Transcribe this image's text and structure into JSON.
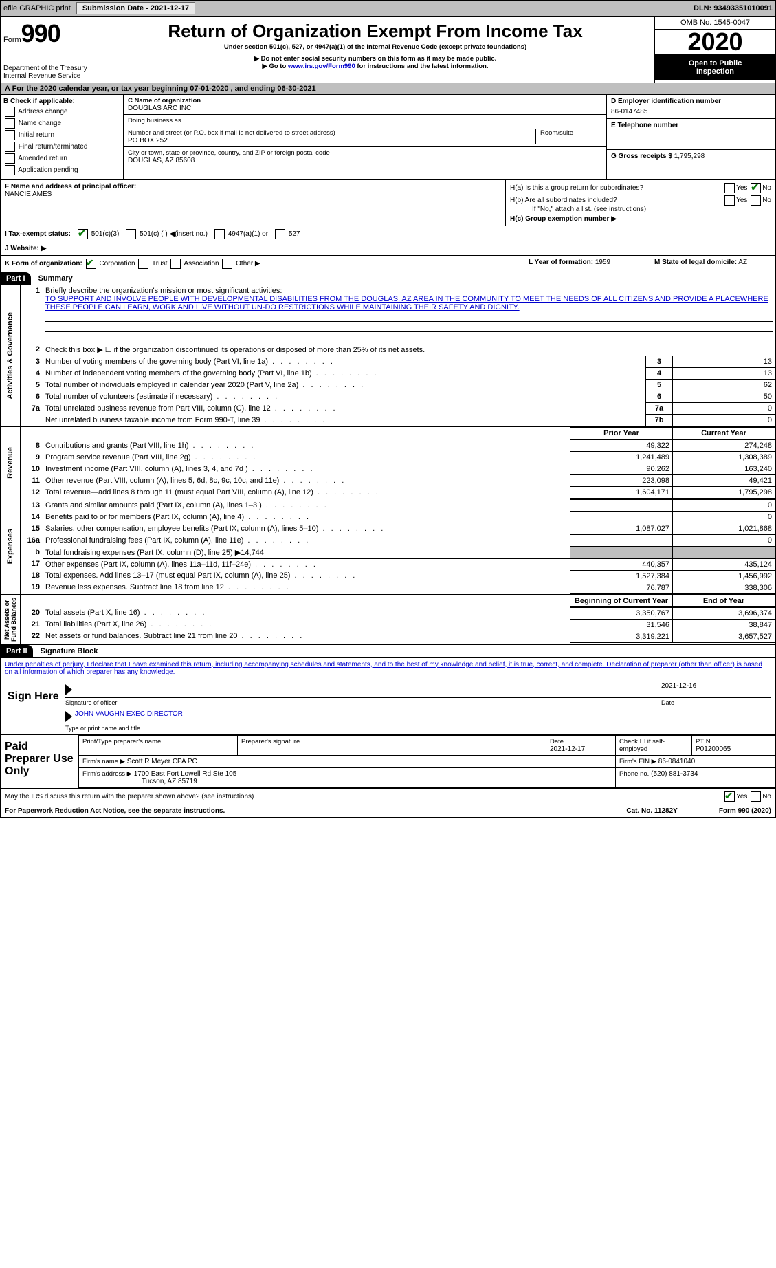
{
  "colors": {
    "header_bg": "#bfbfbf",
    "accent": "#0a7a0a",
    "link": "#0000cc"
  },
  "topbar": {
    "efile": "efile GRAPHIC print",
    "submission_label": "Submission Date - 2021-12-17",
    "dln_label": "DLN: 93493351010091"
  },
  "header": {
    "form_word": "Form",
    "form_no": "990",
    "dept": "Department of the Treasury\nInternal Revenue Service",
    "title": "Return of Organization Exempt From Income Tax",
    "subtitle": "Under section 501(c), 527, or 4947(a)(1) of the Internal Revenue Code (except private foundations)",
    "note1": "▶ Do not enter social security numbers on this form as it may be made public.",
    "note2_a": "▶ Go to ",
    "note2_link": "www.irs.gov/Form990",
    "note2_b": " for instructions and the latest information.",
    "omb": "OMB No. 1545-0047",
    "year": "2020",
    "open_public": "Open to Public\nInspection"
  },
  "period": {
    "prefix": "A For the 2020 calendar year, or tax year beginning ",
    "begin": "07-01-2020",
    "mid": " , and ending ",
    "end": "06-30-2021"
  },
  "B": {
    "label": "B Check if applicable:",
    "opts": [
      "Address change",
      "Name change",
      "Initial return",
      "Final return/terminated",
      "Amended return",
      "Application pending"
    ]
  },
  "C": {
    "name_label": "C Name of organization",
    "name": "DOUGLAS ARC INC",
    "dba_label": "Doing business as",
    "dba": "",
    "addr_label": "Number and street (or P.O. box if mail is not delivered to street address)",
    "addr": "PO BOX 252",
    "room_label": "Room/suite",
    "city_label": "City or town, state or province, country, and ZIP or foreign postal code",
    "city": "DOUGLAS, AZ  85608"
  },
  "D": {
    "label": "D Employer identification number",
    "value": "86-0147485"
  },
  "E": {
    "label": "E Telephone number",
    "value": ""
  },
  "G": {
    "label": "G Gross receipts $",
    "value": "1,795,298"
  },
  "F": {
    "label": "F  Name and address of principal officer:",
    "value": "NANCIE AMES"
  },
  "H": {
    "a": "H(a)  Is this a group return for subordinates?",
    "a_yes": "Yes",
    "a_no": "No",
    "b": "H(b)  Are all subordinates included?",
    "b_note": "If \"No,\" attach a list. (see instructions)",
    "c": "H(c)  Group exemption number ▶"
  },
  "I": {
    "label": "I  Tax-exempt status:",
    "opts": [
      "501(c)(3)",
      "501(c) (  )  ◀(insert no.)",
      "4947(a)(1) or",
      "527"
    ]
  },
  "J": {
    "label": "J  Website: ▶"
  },
  "K": {
    "label": "K Form of organization:",
    "opts": [
      "Corporation",
      "Trust",
      "Association",
      "Other ▶"
    ]
  },
  "L": {
    "label": "L Year of formation:",
    "value": "1959"
  },
  "M": {
    "label": "M State of legal domicile:",
    "value": "AZ"
  },
  "part1": {
    "hdr": "Part I",
    "title": "Summary",
    "q1_label": "1",
    "q1": "Briefly describe the organization's mission or most significant activities:",
    "mission": "TO SUPPORT AND INVOLVE PEOPLE WITH DEVELOPMENTAL DISABILITIES FROM THE DOUGLAS, AZ AREA IN THE COMMUNITY TO MEET THE NEEDS OF ALL CITIZENS AND PROVIDE A PLACEWHERE THESE PEOPLE CAN LEARN, WORK AND LIVE WITHOUT UN-DO RESTRICTIONS WHILE MAINTAINING THEIR SAFETY AND DIGNITY.",
    "q2": "Check this box ▶ ☐ if the organization discontinued its operations or disposed of more than 25% of its net assets.",
    "gov_label": "Activities & Governance",
    "rev_label": "Revenue",
    "exp_label": "Expenses",
    "na_label": "Net Assets or\nFund Balances",
    "lines_gov": [
      {
        "n": "3",
        "t": "Number of voting members of the governing body (Part VI, line 1a)",
        "box": "3",
        "v": "13"
      },
      {
        "n": "4",
        "t": "Number of independent voting members of the governing body (Part VI, line 1b)",
        "box": "4",
        "v": "13"
      },
      {
        "n": "5",
        "t": "Total number of individuals employed in calendar year 2020 (Part V, line 2a)",
        "box": "5",
        "v": "62"
      },
      {
        "n": "6",
        "t": "Total number of volunteers (estimate if necessary)",
        "box": "6",
        "v": "50"
      },
      {
        "n": "7a",
        "t": "Total unrelated business revenue from Part VIII, column (C), line 12",
        "box": "7a",
        "v": "0"
      },
      {
        "n": "",
        "t": "Net unrelated business taxable income from Form 990-T, line 39",
        "box": "7b",
        "v": "0"
      }
    ],
    "col_prior": "Prior Year",
    "col_current": "Current Year",
    "lines_rev": [
      {
        "n": "8",
        "t": "Contributions and grants (Part VIII, line 1h)",
        "p": "49,322",
        "c": "274,248"
      },
      {
        "n": "9",
        "t": "Program service revenue (Part VIII, line 2g)",
        "p": "1,241,489",
        "c": "1,308,389"
      },
      {
        "n": "10",
        "t": "Investment income (Part VIII, column (A), lines 3, 4, and 7d )",
        "p": "90,262",
        "c": "163,240"
      },
      {
        "n": "11",
        "t": "Other revenue (Part VIII, column (A), lines 5, 6d, 8c, 9c, 10c, and 11e)",
        "p": "223,098",
        "c": "49,421"
      },
      {
        "n": "12",
        "t": "Total revenue—add lines 8 through 11 (must equal Part VIII, column (A), line 12)",
        "p": "1,604,171",
        "c": "1,795,298"
      }
    ],
    "lines_exp": [
      {
        "n": "13",
        "t": "Grants and similar amounts paid (Part IX, column (A), lines 1–3 )",
        "p": "",
        "c": "0"
      },
      {
        "n": "14",
        "t": "Benefits paid to or for members (Part IX, column (A), line 4)",
        "p": "",
        "c": "0"
      },
      {
        "n": "15",
        "t": "Salaries, other compensation, employee benefits (Part IX, column (A), lines 5–10)",
        "p": "1,087,027",
        "c": "1,021,868"
      },
      {
        "n": "16a",
        "t": "Professional fundraising fees (Part IX, column (A), line 11e)",
        "p": "",
        "c": "0"
      },
      {
        "n": "b",
        "t": "Total fundraising expenses (Part IX, column (D), line 25) ▶14,744",
        "p": "—",
        "c": "—"
      },
      {
        "n": "17",
        "t": "Other expenses (Part IX, column (A), lines 11a–11d, 11f–24e)",
        "p": "440,357",
        "c": "435,124"
      },
      {
        "n": "18",
        "t": "Total expenses. Add lines 13–17 (must equal Part IX, column (A), line 25)",
        "p": "1,527,384",
        "c": "1,456,992"
      },
      {
        "n": "19",
        "t": "Revenue less expenses. Subtract line 18 from line 12",
        "p": "76,787",
        "c": "338,306"
      }
    ],
    "col_begin": "Beginning of Current Year",
    "col_end": "End of Year",
    "lines_na": [
      {
        "n": "20",
        "t": "Total assets (Part X, line 16)",
        "p": "3,350,767",
        "c": "3,696,374"
      },
      {
        "n": "21",
        "t": "Total liabilities (Part X, line 26)",
        "p": "31,546",
        "c": "38,847"
      },
      {
        "n": "22",
        "t": "Net assets or fund balances. Subtract line 21 from line 20",
        "p": "3,319,221",
        "c": "3,657,527"
      }
    ]
  },
  "part2": {
    "hdr": "Part II",
    "title": "Signature Block",
    "decl": "Under penalties of perjury, I declare that I have examined this return, including accompanying schedules and statements, and to the best of my knowledge and belief, it is true, correct, and complete. Declaration of preparer (other than officer) is based on all information of which preparer has any knowledge.",
    "sign_here": "Sign Here",
    "sig_officer": "Signature of officer",
    "sig_date": "2021-12-16",
    "sig_date_label": "Date",
    "officer_name": "JOHN VAUGHN  EXEC DIRECTOR",
    "officer_label": "Type or print name and title",
    "paid_label": "Paid Preparer Use Only",
    "prep_name_label": "Print/Type preparer's name",
    "prep_name": "",
    "prep_sig_label": "Preparer's signature",
    "prep_date_label": "Date",
    "prep_date": "2021-12-17",
    "self_emp": "Check ☐ if self-employed",
    "ptin_label": "PTIN",
    "ptin": "P01200065",
    "firm_name_label": "Firm's name    ▶",
    "firm_name": "Scott R Meyer CPA PC",
    "firm_ein_label": "Firm's EIN ▶",
    "firm_ein": "86-0841040",
    "firm_addr_label": "Firm's address ▶",
    "firm_addr1": "1700 East Fort Lowell Rd Ste 105",
    "firm_addr2": "Tucson, AZ  85719",
    "phone_label": "Phone no.",
    "phone": "(520) 881-3734",
    "discuss": "May the IRS discuss this return with the preparer shown above? (see instructions)",
    "discuss_yes": "Yes",
    "discuss_no": "No"
  },
  "footer": {
    "pra": "For Paperwork Reduction Act Notice, see the separate instructions.",
    "cat": "Cat. No. 11282Y",
    "formref": "Form 990 (2020)"
  }
}
